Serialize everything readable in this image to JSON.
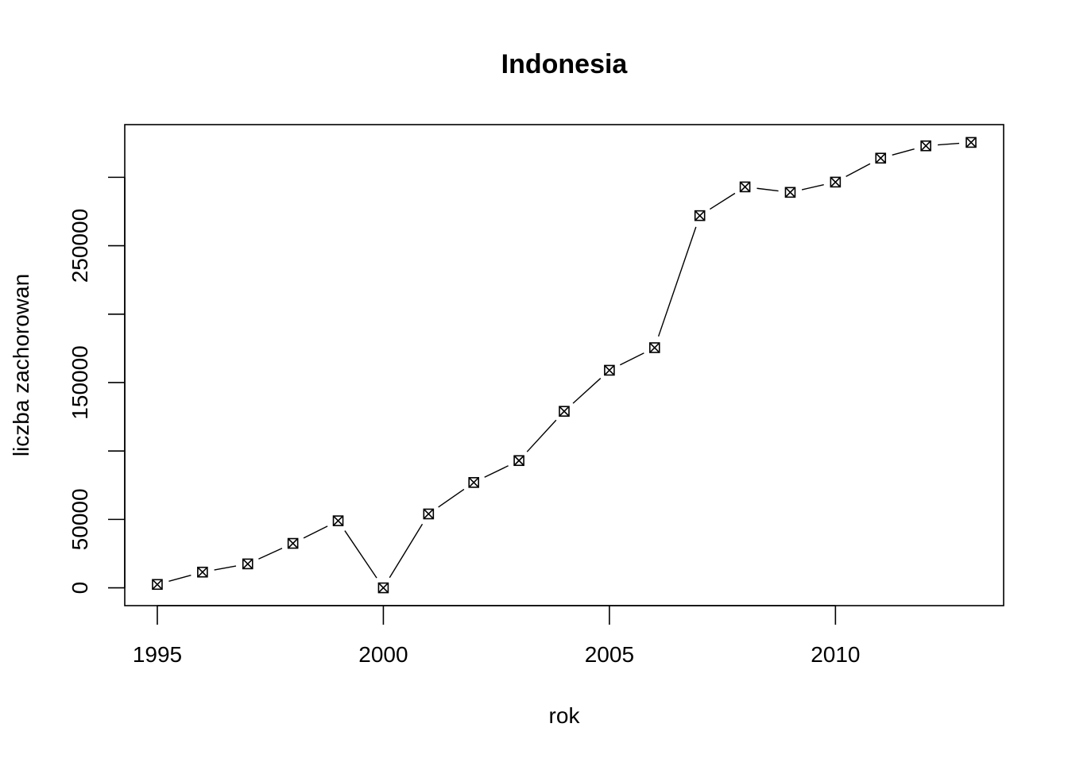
{
  "chart_data": {
    "type": "line",
    "title": "Indonesia",
    "xlabel": "rok",
    "ylabel": "liczba zachorowan",
    "x": [
      1995,
      1996,
      1997,
      1998,
      1999,
      2000,
      2001,
      2002,
      2003,
      2004,
      2005,
      2006,
      2007,
      2008,
      2009,
      2010,
      2011,
      2012,
      2013
    ],
    "series": [
      {
        "values": [
          2500,
          11500,
          17500,
          32500,
          49000,
          0,
          54000,
          77000,
          93000,
          129000,
          159000,
          175500,
          272000,
          293000,
          289000,
          296500,
          314000,
          323000,
          325500
        ]
      }
    ],
    "xlim": [
      1994.28,
      2013.72
    ],
    "ylim": [
      -13000,
      338500
    ],
    "x_ticks": [
      "1995",
      "2000",
      "2005",
      "2010"
    ],
    "y_ticks": [
      "0",
      "50000",
      "150000",
      "250000"
    ],
    "y_tick_marks": [
      0,
      50000,
      100000,
      150000,
      200000,
      250000,
      300000
    ],
    "grid": false,
    "legend": "none",
    "marker": "boxed-x"
  }
}
